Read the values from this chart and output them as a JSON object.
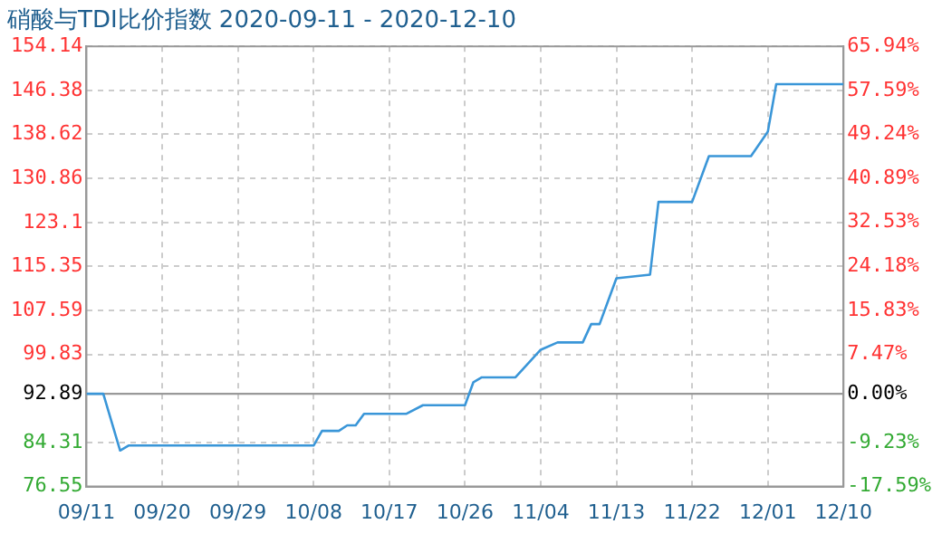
{
  "chart_data": {
    "type": "line",
    "title": "硝酸与TDI比价指数 2020-09-11 - 2020-12-10",
    "x": [
      "2020-09-11",
      "2020-09-13",
      "2020-09-15",
      "2020-09-16",
      "2020-10-08",
      "2020-10-09",
      "2020-10-11",
      "2020-10-12",
      "2020-10-13",
      "2020-10-14",
      "2020-10-19",
      "2020-10-21",
      "2020-10-26",
      "2020-10-27",
      "2020-10-28",
      "2020-11-01",
      "2020-11-04",
      "2020-11-06",
      "2020-11-09",
      "2020-11-10",
      "2020-11-11",
      "2020-11-13",
      "2020-11-17",
      "2020-11-18",
      "2020-11-22",
      "2020-11-24",
      "2020-11-29",
      "2020-12-01",
      "2020-12-02",
      "2020-12-10"
    ],
    "series": [
      {
        "color": "#3a96d8",
        "values": [
          92.89,
          92.89,
          82.9,
          83.78,
          83.78,
          86.36,
          86.36,
          87.33,
          87.33,
          89.36,
          89.36,
          90.88,
          90.88,
          94.95,
          95.8,
          95.8,
          100.66,
          101.95,
          101.95,
          105.18,
          105.18,
          113.25,
          113.9,
          126.71,
          126.71,
          134.78,
          134.78,
          139.08,
          147.47,
          147.47
        ]
      }
    ],
    "xlim": [
      "2020-09-11",
      "2020-12-10"
    ],
    "xticks": [
      {
        "value": "2020-09-11",
        "label": "09/11"
      },
      {
        "value": "2020-09-20",
        "label": "09/20"
      },
      {
        "value": "2020-09-29",
        "label": "09/29"
      },
      {
        "value": "2020-10-08",
        "label": "10/08"
      },
      {
        "value": "2020-10-17",
        "label": "10/17"
      },
      {
        "value": "2020-10-26",
        "label": "10/26"
      },
      {
        "value": "2020-11-04",
        "label": "11/04"
      },
      {
        "value": "2020-11-13",
        "label": "11/13"
      },
      {
        "value": "2020-11-22",
        "label": "11/22"
      },
      {
        "value": "2020-12-01",
        "label": "12/01"
      },
      {
        "value": "2020-12-10",
        "label": "12/10"
      }
    ],
    "ylim": [
      76.55,
      154.14
    ],
    "yticks": [
      76.55,
      84.31,
      92.89,
      99.83,
      107.59,
      115.35,
      123.1,
      130.86,
      138.62,
      146.38,
      154.14
    ],
    "y2lim": [
      -17.59,
      65.94
    ],
    "y2ticks": [
      {
        "value": -17.59,
        "label": "-17.59%"
      },
      {
        "value": -9.23,
        "label": "-9.23%"
      },
      {
        "value": 0,
        "label": "0.00%"
      },
      {
        "value": 7.47,
        "label": "7.47%"
      },
      {
        "value": 15.83,
        "label": "15.83%"
      },
      {
        "value": 24.18,
        "label": "24.18%"
      },
      {
        "value": 32.53,
        "label": "32.53%"
      },
      {
        "value": 40.89,
        "label": "40.89%"
      },
      {
        "value": 49.24,
        "label": "49.24%"
      },
      {
        "value": 57.59,
        "label": "57.59%"
      },
      {
        "value": 65.94,
        "label": "65.94%"
      }
    ],
    "ref_lines": [
      {
        "axis": "y",
        "value": 92.89,
        "color": "#999999"
      }
    ],
    "grid": true,
    "marker": "none",
    "line_style": "solid"
  }
}
